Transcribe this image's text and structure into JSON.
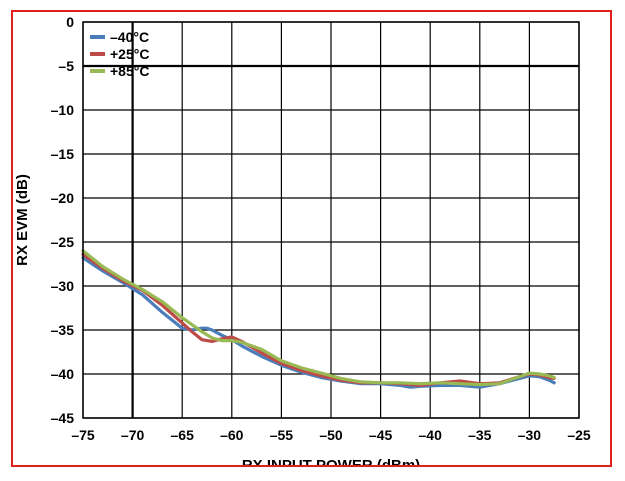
{
  "chart_data": {
    "type": "line",
    "title": "",
    "xlabel": "RX INPUT POWER (dBm)",
    "ylabel": "RX EVM (dB)",
    "xlim": [
      -75,
      -25
    ],
    "ylim": [
      -45,
      0
    ],
    "xticks": [
      -75,
      -70,
      -65,
      -60,
      -55,
      -50,
      -45,
      -40,
      -35,
      -30,
      -25
    ],
    "yticks": [
      0,
      -5,
      -10,
      -15,
      -20,
      -25,
      -30,
      -35,
      -40,
      -45
    ],
    "xtick_labels": [
      "–75",
      "–70",
      "–65",
      "–60",
      "–55",
      "–50",
      "–45",
      "–40",
      "–35",
      "–30",
      "–25"
    ],
    "ytick_labels": [
      "0",
      "–5",
      "–10",
      "–15",
      "–20",
      "–25",
      "–30",
      "–35",
      "–40",
      "–45"
    ],
    "grid": true,
    "legend_position": "top-left",
    "series": [
      {
        "name": "–40°C",
        "color": "#4a7ebb",
        "x": [
          -75,
          -73,
          -71,
          -69,
          -67,
          -65,
          -64,
          -63,
          -62.5,
          -62,
          -61,
          -60,
          -59,
          -57,
          -55,
          -53,
          -51,
          -49,
          -47,
          -45,
          -43,
          -42,
          -41,
          -39,
          -37,
          -35,
          -33,
          -31,
          -30,
          -29,
          -28,
          -27.5
        ],
        "y": [
          -26.8,
          -28.3,
          -29.6,
          -31.0,
          -33.0,
          -34.8,
          -35.0,
          -34.8,
          -34.8,
          -35.0,
          -35.6,
          -36.1,
          -36.8,
          -38.0,
          -39.0,
          -39.8,
          -40.4,
          -40.8,
          -41.1,
          -41.1,
          -41.3,
          -41.5,
          -41.4,
          -41.3,
          -41.3,
          -41.5,
          -41.1,
          -40.5,
          -40.2,
          -40.3,
          -40.7,
          -41.0
        ]
      },
      {
        "name": "+25°C",
        "color": "#be4b48",
        "x": [
          -75,
          -73,
          -71,
          -69,
          -67,
          -65,
          -64,
          -63,
          -62,
          -61,
          -60,
          -59,
          -57,
          -55,
          -53,
          -51,
          -49,
          -47,
          -45,
          -43,
          -41,
          -39,
          -37,
          -35,
          -33,
          -31,
          -30,
          -29,
          -28,
          -27.5
        ],
        "y": [
          -26.4,
          -28.0,
          -29.4,
          -30.5,
          -32.2,
          -34.2,
          -35.2,
          -36.1,
          -36.3,
          -36.0,
          -35.8,
          -36.3,
          -37.6,
          -38.8,
          -39.6,
          -40.2,
          -40.7,
          -41.0,
          -41.0,
          -41.1,
          -41.3,
          -41.0,
          -40.8,
          -41.1,
          -41.0,
          -40.3,
          -40.0,
          -40.1,
          -40.4,
          -40.5
        ]
      },
      {
        "name": "+85°C",
        "color": "#98b954",
        "x": [
          -75,
          -73,
          -71,
          -69,
          -67,
          -65,
          -63,
          -62,
          -61,
          -60,
          -59,
          -57,
          -55,
          -53,
          -51,
          -49,
          -47,
          -45,
          -43,
          -41,
          -39,
          -37,
          -35,
          -33,
          -31,
          -30,
          -29,
          -28,
          -27.5
        ],
        "y": [
          -26.0,
          -27.8,
          -29.2,
          -30.4,
          -31.8,
          -33.6,
          -35.2,
          -35.9,
          -36.2,
          -36.2,
          -36.4,
          -37.2,
          -38.5,
          -39.3,
          -39.9,
          -40.5,
          -40.9,
          -41.0,
          -41.0,
          -41.1,
          -41.0,
          -41.1,
          -41.2,
          -41.1,
          -40.3,
          -39.9,
          -40.0,
          -40.2,
          -40.4
        ]
      }
    ]
  }
}
